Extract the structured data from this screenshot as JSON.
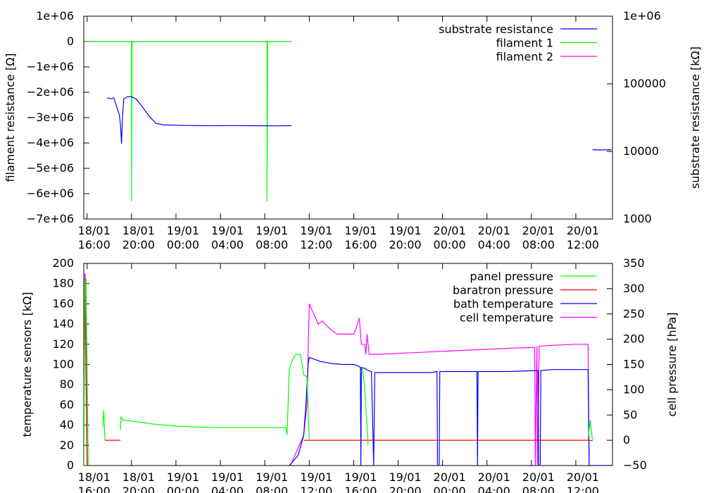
{
  "chart_data": [
    {
      "type": "line",
      "ylabel_left": "filament resistance [Ω]",
      "ylabel_right": "substrate resistance [kΩ]",
      "x_ticks": [
        {
          "t": 0,
          "l1": "18/01",
          "l2": "16:00"
        },
        {
          "t": 4,
          "l1": "18/01",
          "l2": "20:00"
        },
        {
          "t": 8,
          "l1": "19/01",
          "l2": "00:00"
        },
        {
          "t": 12,
          "l1": "19/01",
          "l2": "04:00"
        },
        {
          "t": 16,
          "l1": "19/01",
          "l2": "08:00"
        },
        {
          "t": 20,
          "l1": "19/01",
          "l2": "12:00"
        },
        {
          "t": 24,
          "l1": "19/01",
          "l2": "16:00"
        },
        {
          "t": 28,
          "l1": "19/01",
          "l2": "20:00"
        },
        {
          "t": 32,
          "l1": "20/01",
          "l2": "00:00"
        },
        {
          "t": 36,
          "l1": "20/01",
          "l2": "04:00"
        },
        {
          "t": 40,
          "l1": "20/01",
          "l2": "08:00"
        },
        {
          "t": 44,
          "l1": "20/01",
          "l2": "12:00"
        }
      ],
      "xlim": [
        -0.3,
        47.3
      ],
      "ylim_left": [
        -7000000,
        1000000
      ],
      "yticks_left": [
        {
          "v": 1000000,
          "label": "1e+06"
        },
        {
          "v": 0,
          "label": "0"
        },
        {
          "v": -1000000,
          "label": "−1e+06"
        },
        {
          "v": -2000000,
          "label": "−2e+06"
        },
        {
          "v": -3000000,
          "label": "−3e+06"
        },
        {
          "v": -4000000,
          "label": "−4e+06"
        },
        {
          "v": -5000000,
          "label": "−5e+06"
        },
        {
          "v": -6000000,
          "label": "−6e+06"
        },
        {
          "v": -7000000,
          "label": "−7e+06"
        }
      ],
      "ylim_right_log": [
        1000,
        1000000
      ],
      "yticks_right": [
        {
          "v": 1000,
          "label": "1000"
        },
        {
          "v": 10000,
          "label": "10000"
        },
        {
          "v": 100000,
          "label": "100000"
        },
        {
          "v": 1000000,
          "label": "1e+06"
        }
      ],
      "legend_position": "top-right",
      "series": [
        {
          "name": "substrate resistance",
          "color": "#0000ff",
          "axis": "right",
          "segments": [
            [
              [
                1.8,
                62000
              ],
              [
                2.2,
                60000
              ],
              [
                2.4,
                62000
              ],
              [
                2.6,
                49000
              ],
              [
                2.9,
                35000
              ],
              [
                3.0,
                25000
              ],
              [
                3.1,
                13000
              ],
              [
                3.2,
                35000
              ],
              [
                3.3,
                60000
              ],
              [
                3.6,
                64000
              ],
              [
                3.9,
                65000
              ],
              [
                4.4,
                60000
              ],
              [
                5.0,
                45000
              ],
              [
                5.6,
                33000
              ],
              [
                6.2,
                26000
              ],
              [
                6.8,
                24800
              ],
              [
                7.5,
                24500
              ],
              [
                9,
                24200
              ],
              [
                11,
                24000
              ],
              [
                13,
                24100
              ],
              [
                15,
                24000
              ],
              [
                17,
                23900
              ],
              [
                18.4,
                24000
              ]
            ],
            [
              [
                45.5,
                10600
              ],
              [
                46.2,
                10500
              ],
              [
                47.2,
                10600
              ]
            ]
          ]
        },
        {
          "name": "filament 1",
          "color": "#00ff00",
          "axis": "left",
          "segments": [
            [
              [
                -0.2,
                0
              ],
              [
                4.0,
                0
              ],
              [
                4.0,
                -6300000
              ],
              [
                4.05,
                0
              ],
              [
                16.2,
                0
              ],
              [
                16.2,
                -6300000
              ],
              [
                16.25,
                0
              ],
              [
                18.4,
                0
              ]
            ]
          ]
        },
        {
          "name": "filament 2",
          "color": "#ff00ff",
          "axis": "left",
          "segments": [
            [
              [
                -0.2,
                0
              ],
              [
                18.4,
                0
              ]
            ]
          ]
        }
      ]
    },
    {
      "type": "line",
      "ylabel_left": "temperature sensors [kΩ]",
      "ylabel_right": "cell pressure [hPa]",
      "x_ticks": [
        {
          "t": 0,
          "l1": "18/01",
          "l2": "16:00"
        },
        {
          "t": 4,
          "l1": "18/01",
          "l2": "20:00"
        },
        {
          "t": 8,
          "l1": "19/01",
          "l2": "00:00"
        },
        {
          "t": 12,
          "l1": "19/01",
          "l2": "04:00"
        },
        {
          "t": 16,
          "l1": "19/01",
          "l2": "08:00"
        },
        {
          "t": 20,
          "l1": "19/01",
          "l2": "12:00"
        },
        {
          "t": 24,
          "l1": "19/01",
          "l2": "16:00"
        },
        {
          "t": 28,
          "l1": "19/01",
          "l2": "20:00"
        },
        {
          "t": 32,
          "l1": "20/01",
          "l2": "00:00"
        },
        {
          "t": 36,
          "l1": "20/01",
          "l2": "04:00"
        },
        {
          "t": 40,
          "l1": "20/01",
          "l2": "08:00"
        },
        {
          "t": 44,
          "l1": "20/01",
          "l2": "12:00"
        }
      ],
      "xlim": [
        -0.3,
        47.3
      ],
      "ylim_left": [
        0,
        200
      ],
      "yticks_left": [
        {
          "v": 0,
          "label": "0"
        },
        {
          "v": 20,
          "label": "20"
        },
        {
          "v": 40,
          "label": "40"
        },
        {
          "v": 60,
          "label": "60"
        },
        {
          "v": 80,
          "label": "80"
        },
        {
          "v": 100,
          "label": "100"
        },
        {
          "v": 120,
          "label": "120"
        },
        {
          "v": 140,
          "label": "140"
        },
        {
          "v": 160,
          "label": "160"
        },
        {
          "v": 180,
          "label": "180"
        },
        {
          "v": 200,
          "label": "200"
        }
      ],
      "ylim_right": [
        -50,
        350
      ],
      "yticks_right": [
        {
          "v": -50,
          "label": "−50"
        },
        {
          "v": 0,
          "label": "0"
        },
        {
          "v": 50,
          "label": "50"
        },
        {
          "v": 100,
          "label": "100"
        },
        {
          "v": 150,
          "label": "150"
        },
        {
          "v": 200,
          "label": "200"
        },
        {
          "v": 250,
          "label": "250"
        },
        {
          "v": 300,
          "label": "300"
        },
        {
          "v": 350,
          "label": "350"
        }
      ],
      "legend_position": "top-right",
      "series": [
        {
          "name": "panel pressure",
          "color": "#00ff00",
          "axis": "right",
          "segments": [
            [
              [
                -0.3,
                -50
              ],
              [
                -0.2,
                310
              ],
              [
                -0.1,
                320
              ],
              [
                0.1,
                -50
              ]
            ],
            [
              [
                1.4,
                25
              ],
              [
                1.5,
                60
              ],
              [
                1.6,
                0
              ]
            ],
            [
              [
                3.0,
                20
              ],
              [
                3.05,
                47
              ],
              [
                3.2,
                40
              ],
              [
                4,
                38
              ],
              [
                5,
                35
              ],
              [
                6,
                32
              ],
              [
                7,
                30
              ],
              [
                8,
                28
              ],
              [
                10,
                26
              ],
              [
                12,
                25
              ],
              [
                14,
                25
              ],
              [
                16,
                25
              ],
              [
                17.9,
                25
              ],
              [
                18.0,
                10
              ],
              [
                18.2,
                140
              ],
              [
                18.5,
                160
              ],
              [
                18.8,
                170
              ],
              [
                19.2,
                170
              ],
              [
                19.5,
                130
              ],
              [
                19.8,
                125
              ],
              [
                20.0,
                0
              ]
            ],
            [
              [
                24.6,
                135
              ],
              [
                24.8,
                140
              ],
              [
                25.0,
                100
              ],
              [
                25.2,
                30
              ],
              [
                25.3,
                -10
              ]
            ],
            [
              [
                45.1,
                0
              ],
              [
                45.3,
                40
              ],
              [
                45.5,
                0
              ]
            ]
          ]
        },
        {
          "name": "baratron pressure",
          "color": "#ff0000",
          "axis": "right",
          "segments": [
            [
              [
                -0.2,
                320
              ],
              [
                0.0,
                -50
              ]
            ],
            [
              [
                1.6,
                0
              ],
              [
                3.0,
                0
              ]
            ],
            [
              [
                19.5,
                0
              ],
              [
                25,
                0
              ],
              [
                30,
                0
              ],
              [
                35,
                0
              ],
              [
                40,
                0
              ],
              [
                45.2,
                0
              ],
              [
                45.5,
                -1
              ]
            ]
          ]
        },
        {
          "name": "bath temperature",
          "color": "#0000ff",
          "axis": "left",
          "segments": [
            [
              [
                18.2,
                0
              ],
              [
                19,
                10
              ],
              [
                19.5,
                30
              ],
              [
                19.7,
                60
              ],
              [
                19.9,
                100
              ],
              [
                20.0,
                107
              ],
              [
                21,
                103
              ],
              [
                22,
                101
              ],
              [
                23,
                100
              ],
              [
                24,
                100
              ],
              [
                24.5,
                98
              ],
              [
                24.6,
                97
              ],
              [
                24.65,
                0
              ],
              [
                24.7,
                97
              ],
              [
                25.0,
                96
              ],
              [
                25.3,
                94
              ],
              [
                25.6,
                93
              ],
              [
                25.8,
                0
              ],
              [
                25.9,
                92
              ],
              [
                27,
                92
              ],
              [
                29,
                92
              ],
              [
                31,
                92
              ],
              [
                31.5,
                93
              ],
              [
                31.55,
                0
              ],
              [
                31.7,
                0
              ],
              [
                31.75,
                93
              ],
              [
                33,
                93
              ],
              [
                35.1,
                93
              ],
              [
                35.15,
                0
              ],
              [
                35.2,
                93
              ],
              [
                38,
                93
              ],
              [
                40.6,
                94
              ],
              [
                40.65,
                0
              ],
              [
                40.8,
                0
              ],
              [
                40.85,
                94
              ],
              [
                42,
                95
              ],
              [
                44,
                95
              ],
              [
                45.1,
                95
              ],
              [
                45.2,
                0
              ],
              [
                46,
                0
              ],
              [
                47.2,
                0
              ]
            ]
          ]
        },
        {
          "name": "cell temperature",
          "color": "#ff00ff",
          "axis": "left",
          "segments": [
            [
              [
                -0.3,
                0
              ],
              [
                -0.2,
                190
              ],
              [
                -0.1,
                180
              ],
              [
                0.0,
                0
              ]
            ],
            [
              [
                18.3,
                0
              ],
              [
                19.5,
                30
              ],
              [
                19.8,
                60
              ],
              [
                20.0,
                160
              ],
              [
                20.4,
                150
              ],
              [
                20.8,
                140
              ],
              [
                21.2,
                143
              ],
              [
                21.6,
                138
              ],
              [
                22.0,
                134
              ],
              [
                22.5,
                130
              ],
              [
                23,
                130
              ],
              [
                23.5,
                130
              ],
              [
                24.0,
                130
              ],
              [
                24.2,
                135
              ],
              [
                24.5,
                146
              ],
              [
                24.7,
                120
              ],
              [
                25.0,
                120
              ],
              [
                25.1,
                110
              ],
              [
                25.2,
                130
              ],
              [
                25.3,
                120
              ],
              [
                25.4,
                110
              ],
              [
                26,
                110
              ],
              [
                28,
                111
              ],
              [
                30,
                112
              ],
              [
                32,
                113
              ],
              [
                34,
                114
              ],
              [
                36,
                115
              ],
              [
                38,
                116
              ],
              [
                40.3,
                117
              ],
              [
                40.35,
                0
              ],
              [
                40.5,
                118
              ],
              [
                40.55,
                0
              ],
              [
                40.7,
                118
              ],
              [
                42,
                119
              ],
              [
                44,
                120
              ],
              [
                45.1,
                120
              ],
              [
                45.2,
                0
              ],
              [
                46,
                0
              ],
              [
                47.2,
                0
              ]
            ]
          ]
        }
      ]
    }
  ]
}
